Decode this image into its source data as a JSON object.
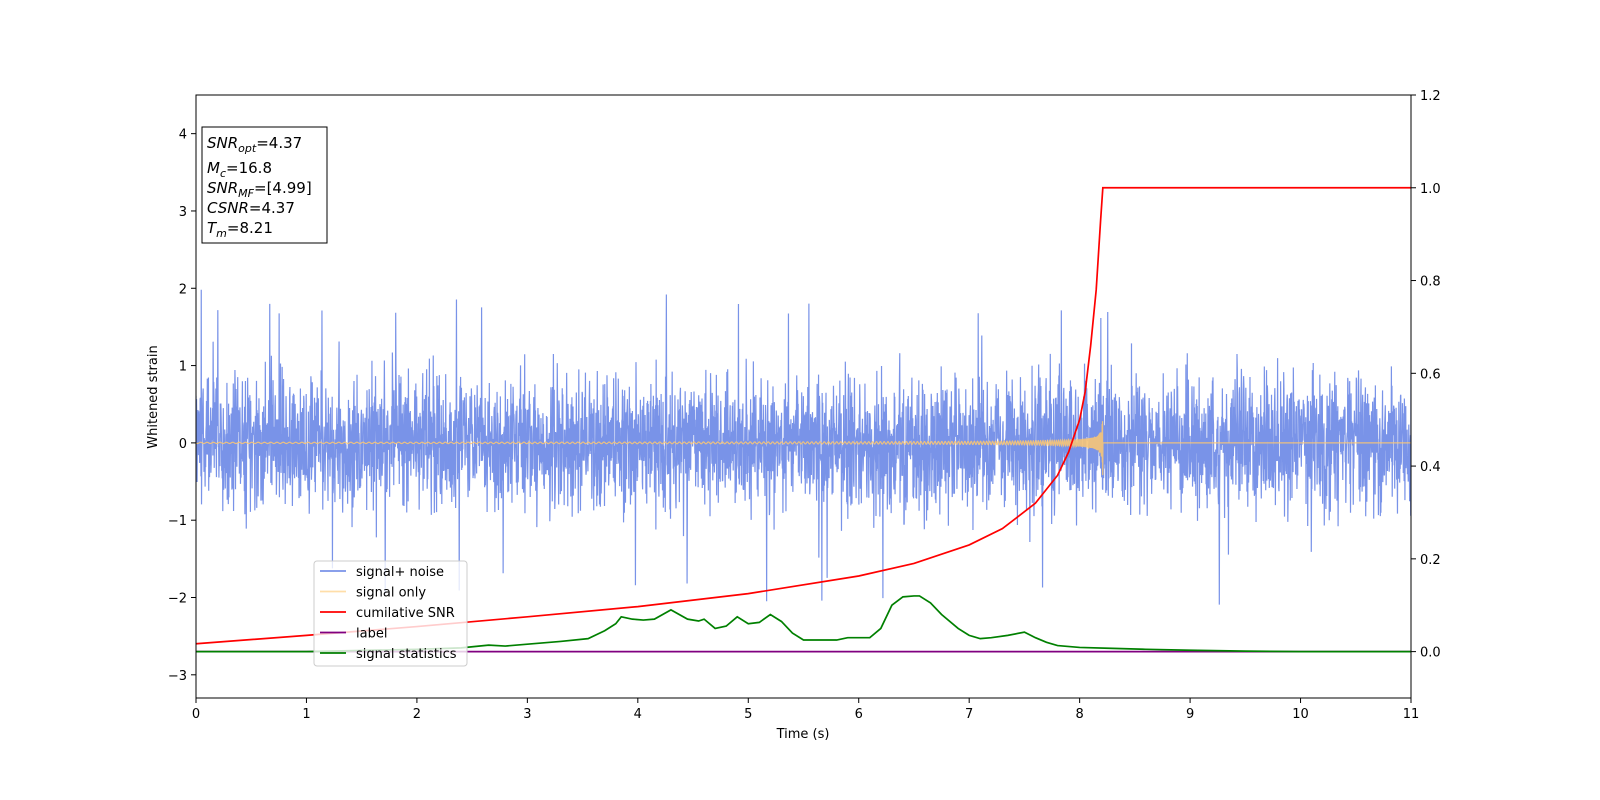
{
  "chart_data": {
    "type": "line",
    "xlabel": "Time (s)",
    "ylabel": "Whitened strain",
    "xlim": [
      0,
      11
    ],
    "ylim": [
      -3.3,
      4.5
    ],
    "y2lim": [
      -0.1,
      1.2
    ],
    "xticks": [
      0,
      1,
      2,
      3,
      4,
      5,
      6,
      7,
      8,
      9,
      10,
      11
    ],
    "yticks": [
      -3,
      -2,
      -1,
      0,
      1,
      2,
      3,
      4
    ],
    "y2ticks": [
      0.0,
      0.2,
      0.4,
      0.6,
      0.8,
      1.0,
      1.2
    ],
    "legend_placement": "lower-left",
    "grid": false,
    "infobox": [
      {
        "base": "SNR",
        "sub": "opt",
        "text": "=4.37"
      },
      {
        "base": "M",
        "sub": "c",
        "text": "=16.8"
      },
      {
        "base": "SNR",
        "sub": "MF",
        "text": "=[4.99]"
      },
      {
        "base": "CSNR",
        "sub": "",
        "text": "=4.37"
      },
      {
        "base": "T",
        "sub": "m",
        "text": "=8.21"
      }
    ],
    "series": [
      {
        "name": "signal+ noise",
        "color": "#6a87e6",
        "axis": "left",
        "description": "noisy whitened strain, zero-mean, amplitude about ±1.2 with spikes to ~2.1 and ~-2.1",
        "seed": 7
      },
      {
        "name": "signal only",
        "color": "#ffc870",
        "axis": "left",
        "description": "chirp near 0, growing until merger",
        "merger_time": 8.21,
        "peak_amplitude": 0.45
      },
      {
        "name": "cumilative SNR",
        "color": "#ff0000",
        "axis": "right",
        "x": [
          0,
          1,
          2,
          3,
          4,
          5,
          6,
          6.5,
          7,
          7.3,
          7.6,
          7.8,
          7.9,
          8.0,
          8.05,
          8.1,
          8.15,
          8.19,
          8.21,
          11
        ],
        "y": [
          0.017,
          0.035,
          0.054,
          0.075,
          0.097,
          0.125,
          0.163,
          0.19,
          0.23,
          0.265,
          0.32,
          0.38,
          0.43,
          0.5,
          0.56,
          0.66,
          0.78,
          0.93,
          1.0,
          1.0
        ]
      },
      {
        "name": "label",
        "color": "#800080",
        "axis": "right",
        "x": [
          0,
          11
        ],
        "y": [
          0,
          0
        ]
      },
      {
        "name": "signal statistics",
        "color": "#008000",
        "axis": "right",
        "x": [
          0,
          1,
          2,
          2.4,
          2.65,
          2.8,
          3.0,
          3.3,
          3.55,
          3.7,
          3.8,
          3.85,
          3.95,
          4.05,
          4.15,
          4.3,
          4.45,
          4.55,
          4.6,
          4.7,
          4.8,
          4.9,
          5.0,
          5.1,
          5.2,
          5.3,
          5.4,
          5.5,
          5.6,
          5.8,
          5.9,
          6.0,
          6.1,
          6.2,
          6.3,
          6.4,
          6.5,
          6.55,
          6.65,
          6.75,
          6.9,
          7.0,
          7.1,
          7.2,
          7.35,
          7.5,
          7.6,
          7.7,
          7.8,
          8.0,
          8.3,
          8.6,
          9.0,
          9.5,
          10,
          11
        ],
        "y": [
          0.0,
          0.0,
          0.005,
          0.008,
          0.014,
          0.012,
          0.016,
          0.022,
          0.028,
          0.045,
          0.06,
          0.075,
          0.07,
          0.068,
          0.07,
          0.09,
          0.07,
          0.066,
          0.07,
          0.05,
          0.055,
          0.075,
          0.06,
          0.063,
          0.08,
          0.065,
          0.04,
          0.025,
          0.025,
          0.025,
          0.03,
          0.03,
          0.03,
          0.05,
          0.1,
          0.118,
          0.12,
          0.12,
          0.105,
          0.08,
          0.05,
          0.035,
          0.028,
          0.03,
          0.035,
          0.042,
          0.03,
          0.02,
          0.013,
          0.009,
          0.007,
          0.005,
          0.003,
          0.001,
          0.0,
          0.0
        ]
      }
    ]
  }
}
